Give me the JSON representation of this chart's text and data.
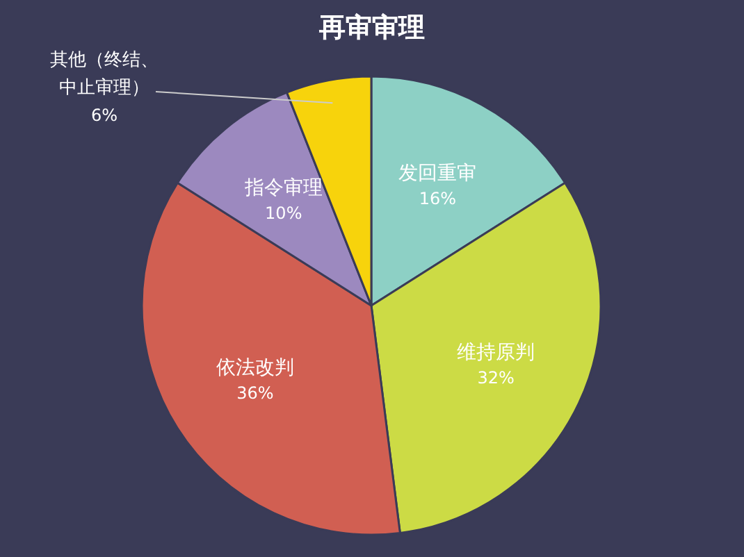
{
  "chart_data": {
    "type": "pie",
    "title": "再审审理",
    "categories": [
      "发回重审",
      "维持原判",
      "依法改判",
      "指令审理",
      "其他（终结、中止审理）"
    ],
    "values": [
      16,
      32,
      36,
      10,
      6
    ],
    "colors": [
      "#8dd0c5",
      "#ccdb45",
      "#d15f52",
      "#9c89bf",
      "#f7d30c"
    ],
    "value_labels": [
      "16%",
      "32%",
      "36%",
      "10%",
      "6%"
    ],
    "legend": false
  }
}
